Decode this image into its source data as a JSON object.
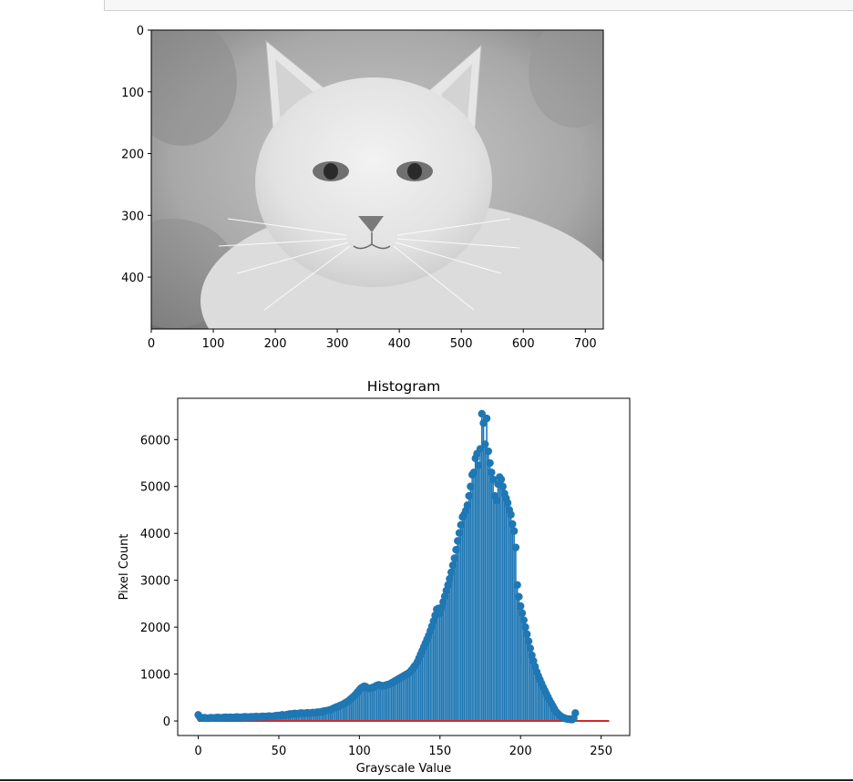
{
  "chart_data": [
    {
      "type": "image",
      "image_description": "grayscale photo of a white cat",
      "x_ticks": [
        0,
        100,
        200,
        300,
        400,
        500,
        600,
        700
      ],
      "y_ticks": [
        0,
        100,
        200,
        300,
        400
      ],
      "xlim": [
        0,
        729
      ],
      "ylim": [
        484,
        0
      ]
    },
    {
      "type": "stem",
      "title": "Histogram",
      "xlabel": "Grayscale Value",
      "ylabel": "Pixel Count",
      "x_ticks": [
        0,
        50,
        100,
        150,
        200,
        250
      ],
      "y_ticks": [
        0,
        1000,
        2000,
        3000,
        4000,
        5000,
        6000
      ],
      "xlim": [
        -12.75,
        267.75
      ],
      "ylim": [
        -310,
        6880
      ],
      "x_range": [
        0,
        255
      ],
      "values": [
        130,
        80,
        70,
        65,
        70,
        60,
        55,
        65,
        70,
        60,
        65,
        70,
        75,
        70,
        65,
        70,
        75,
        80,
        70,
        75,
        80,
        75,
        70,
        80,
        85,
        80,
        75,
        80,
        85,
        90,
        85,
        80,
        85,
        90,
        85,
        90,
        95,
        90,
        85,
        95,
        100,
        95,
        90,
        100,
        105,
        100,
        95,
        105,
        110,
        115,
        110,
        120,
        130,
        125,
        120,
        135,
        140,
        150,
        145,
        155,
        160,
        155,
        150,
        165,
        170,
        165,
        160,
        170,
        175,
        165,
        170,
        180,
        175,
        180,
        190,
        185,
        195,
        200,
        210,
        215,
        220,
        230,
        240,
        250,
        270,
        285,
        300,
        310,
        330,
        340,
        360,
        380,
        400,
        420,
        450,
        480,
        510,
        540,
        580,
        620,
        660,
        700,
        720,
        740,
        730,
        700,
        690,
        700,
        710,
        720,
        740,
        760,
        770,
        760,
        740,
        750,
        760,
        770,
        780,
        790,
        810,
        830,
        850,
        870,
        890,
        910,
        930,
        950,
        970,
        990,
        1010,
        1030,
        1070,
        1110,
        1160,
        1200,
        1260,
        1340,
        1420,
        1500,
        1580,
        1660,
        1740,
        1820,
        1920,
        2020,
        2130,
        2250,
        2380,
        2400,
        2300,
        2420,
        2540,
        2660,
        2780,
        2900,
        3030,
        3170,
        3320,
        3470,
        3650,
        3840,
        4010,
        4180,
        4350,
        4400,
        4480,
        4600,
        4800,
        5000,
        5250,
        5300,
        5600,
        5700,
        5450,
        5800,
        6550,
        6350,
        5900,
        6450,
        5750,
        5500,
        5300,
        5150,
        4800,
        4700,
        5050,
        5200,
        5150,
        5000,
        4850,
        4750,
        4650,
        4500,
        4400,
        4200,
        4050,
        3700,
        2900,
        2650,
        2450,
        2300,
        2150,
        2000,
        1850,
        1700,
        1550,
        1400,
        1280,
        1160,
        1050,
        960,
        880,
        800,
        720,
        650,
        580,
        510,
        440,
        380,
        320,
        260,
        200,
        160,
        130,
        100,
        80,
        65,
        50,
        40,
        40,
        35,
        30,
        60,
        170
      ]
    }
  ],
  "colors": {
    "stem": "#1f77b4",
    "baseline": "#d62728",
    "axis": "#000000"
  }
}
